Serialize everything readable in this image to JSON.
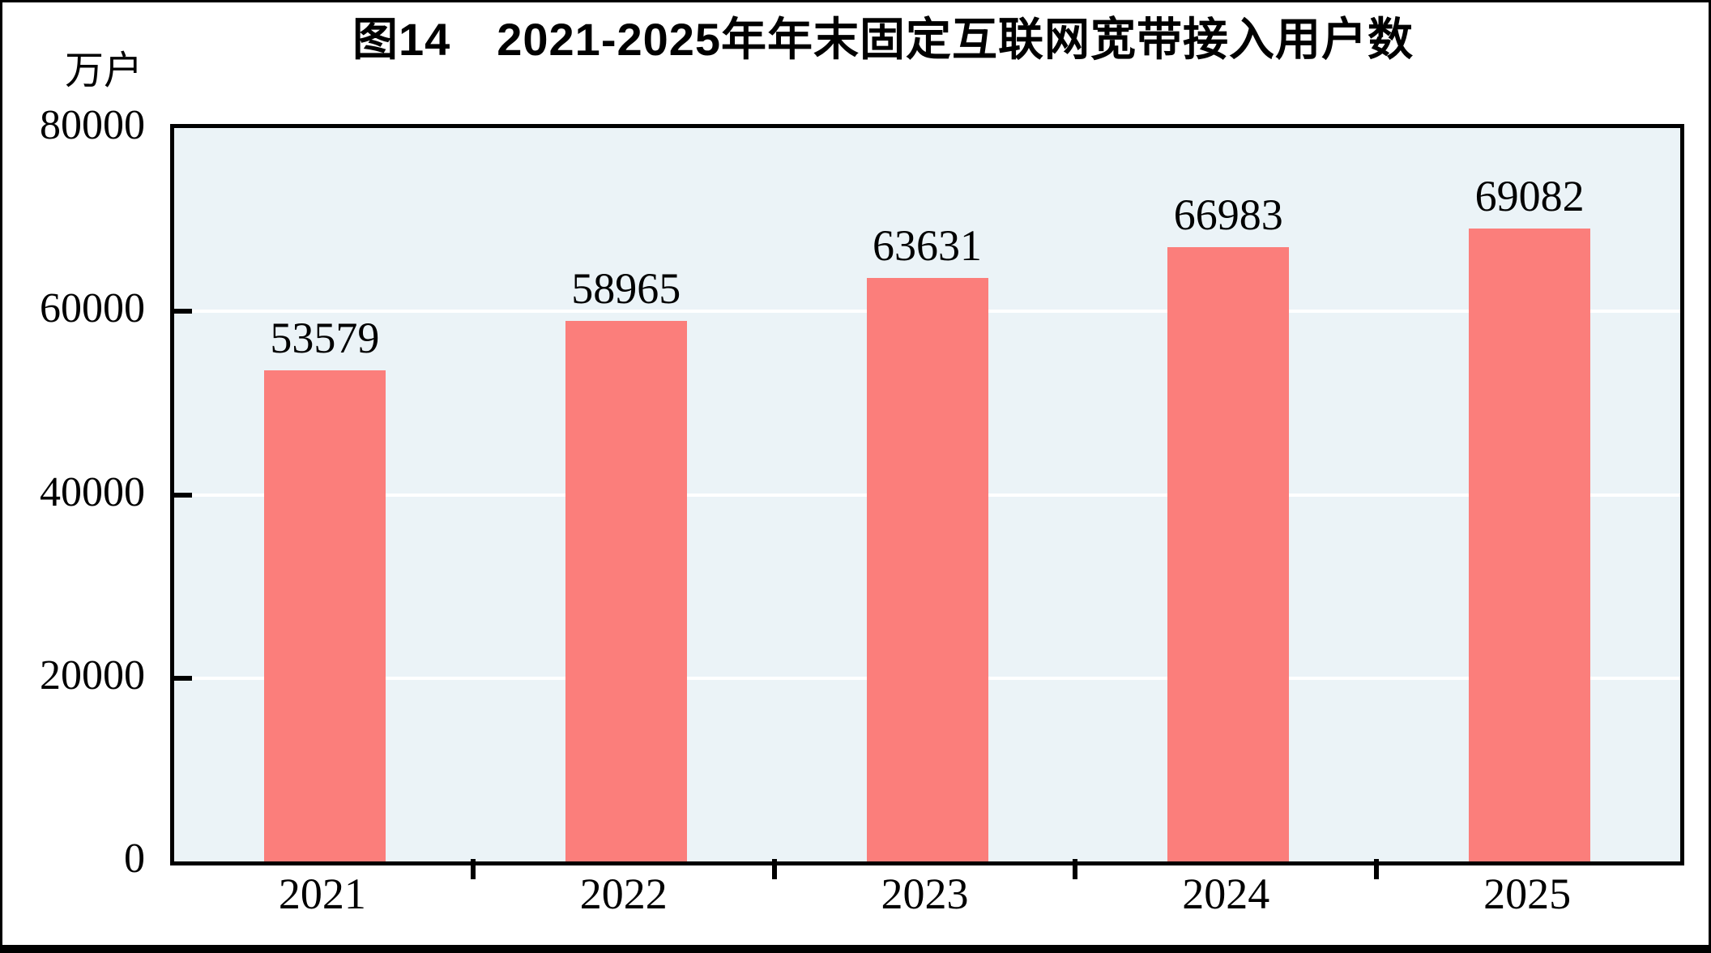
{
  "chart_data": {
    "type": "bar",
    "title": "图14　2021-2025年年末固定互联网宽带接入用户数",
    "unit_label": "万户",
    "categories": [
      "2021",
      "2022",
      "2023",
      "2024",
      "2025"
    ],
    "values": [
      53579,
      58965,
      63631,
      66983,
      69082
    ],
    "value_labels": [
      "53579",
      "58965",
      "63631",
      "66983",
      "69082"
    ],
    "ylim": [
      0,
      80000
    ],
    "yticks": [
      0,
      20000,
      40000,
      60000,
      80000
    ],
    "ytick_labels": [
      "0",
      "20000",
      "40000",
      "60000",
      "80000"
    ],
    "grid": "horizontal",
    "legend": "none",
    "colors": {
      "bar": "#FB7E7B",
      "plot_background": "#EBF3F7",
      "gridline": "#FFFFFF",
      "text": "#000000",
      "frame": "#000000"
    }
  }
}
